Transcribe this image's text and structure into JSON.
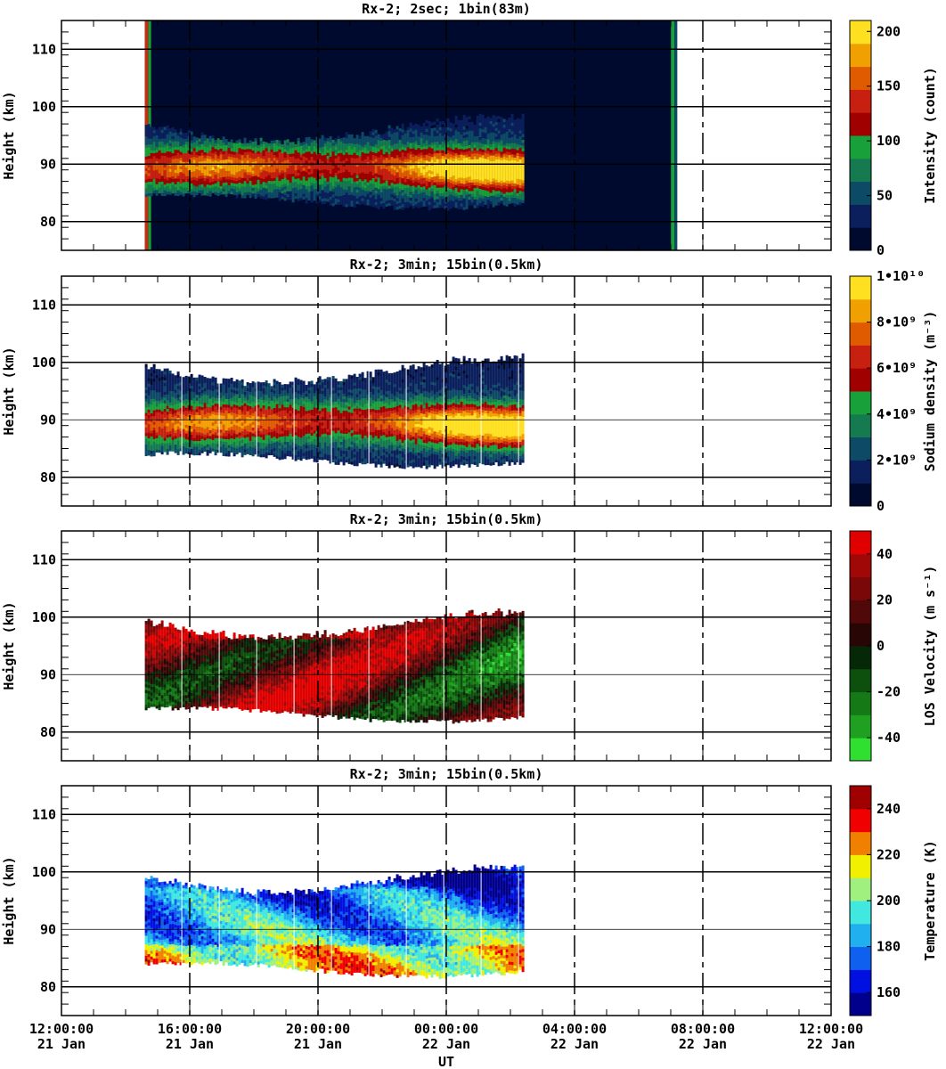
{
  "figure": {
    "xlabel": "UT",
    "x_ticks": [
      {
        "time": "12:00:00",
        "date": "21 Jan"
      },
      {
        "time": "16:00:00",
        "date": "21 Jan"
      },
      {
        "time": "20:00:00",
        "date": "21 Jan"
      },
      {
        "time": "00:00:00",
        "date": "22 Jan"
      },
      {
        "time": "04:00:00",
        "date": "22 Jan"
      },
      {
        "time": "08:00:00",
        "date": "22 Jan"
      },
      {
        "time": "12:00:00",
        "date": "22 Jan"
      }
    ],
    "ylabel": "Height (km)",
    "y_ticks": [
      80,
      90,
      100,
      110
    ]
  },
  "chart_data": [
    {
      "type": "heatmap",
      "title": "Rx-2;  2sec; 1bin(83m)",
      "x_range": [
        "2024-01-21T12:00",
        "2024-01-22T12:00"
      ],
      "ylim": [
        75,
        115
      ],
      "ylabel": "Height (km)",
      "colorbar": {
        "label": "Intensity (count)",
        "ticks": [
          "0",
          "50",
          "100",
          "150",
          "200"
        ],
        "range": [
          0,
          210
        ],
        "colors": [
          "#000a2e",
          "#0b1f5c",
          "#0d4a66",
          "#157a50",
          "#18a03a",
          "#a00000",
          "#c82010",
          "#e05a00",
          "#f0a000",
          "#ffe020"
        ]
      },
      "observation_window": {
        "start_hours": 14.6,
        "end_hours": 31.2
      },
      "layer": {
        "start_hours": 14.6,
        "end_hours": 26.4,
        "peak_km": 89,
        "low_km": 83.5,
        "high_km": 97.5
      },
      "grid": true
    },
    {
      "type": "heatmap",
      "title": "Rx-2; 3min; 15bin(0.5km)",
      "x_range": [
        "2024-01-21T12:00",
        "2024-01-22T12:00"
      ],
      "ylim": [
        75,
        115
      ],
      "ylabel": "Height (km)",
      "colorbar": {
        "label": "Sodium density (m⁻³)",
        "ticks": [
          "0",
          "2•10⁹",
          "4•10⁹",
          "6•10⁹",
          "8•10⁹",
          "1•10¹⁰"
        ],
        "range": [
          0,
          10000000000
        ],
        "colors": [
          "#000a2e",
          "#0b1f5c",
          "#0d4a66",
          "#157a50",
          "#18a03a",
          "#a00000",
          "#c82010",
          "#e05a00",
          "#f0a000",
          "#ffe020"
        ]
      },
      "layer": {
        "start_hours": 14.6,
        "end_hours": 26.4,
        "peak_km": 89,
        "low_km": 83,
        "high_km": 100
      },
      "grid": true
    },
    {
      "type": "heatmap",
      "title": "Rx-2; 3min; 15bin(0.5km)",
      "x_range": [
        "2024-01-21T12:00",
        "2024-01-22T12:00"
      ],
      "ylim": [
        75,
        115
      ],
      "ylabel": "Height (km)",
      "colorbar": {
        "label": "LOS Velocity (m s⁻¹)",
        "ticks": [
          "-40",
          "-20",
          "0",
          "20",
          "40"
        ],
        "range": [
          -50,
          50
        ],
        "colors": [
          "#30e030",
          "#20a020",
          "#157a15",
          "#0d500d",
          "#062806",
          "#280606",
          "#500808",
          "#7a0808",
          "#a00808",
          "#e00000"
        ]
      },
      "layer": {
        "start_hours": 14.6,
        "end_hours": 26.4,
        "peak_km": 89,
        "low_km": 83,
        "high_km": 100
      },
      "grid": true
    },
    {
      "type": "heatmap",
      "title": "Rx-2; 3min; 15bin(0.5km)",
      "x_range": [
        "2024-01-21T12:00",
        "2024-01-22T12:00"
      ],
      "ylim": [
        75,
        115
      ],
      "ylabel": "Height (km)",
      "colorbar": {
        "label": "Temperature (K)",
        "ticks": [
          "160",
          "180",
          "200",
          "220",
          "240"
        ],
        "range": [
          150,
          250
        ],
        "colors": [
          "#00008c",
          "#0010e0",
          "#1060f0",
          "#20b0f0",
          "#40e8e0",
          "#a0f080",
          "#f0f000",
          "#f08000",
          "#f00000",
          "#a00000"
        ]
      },
      "layer": {
        "start_hours": 14.6,
        "end_hours": 26.4,
        "peak_km": 89,
        "low_km": 83,
        "high_km": 100
      },
      "grid": true
    }
  ]
}
